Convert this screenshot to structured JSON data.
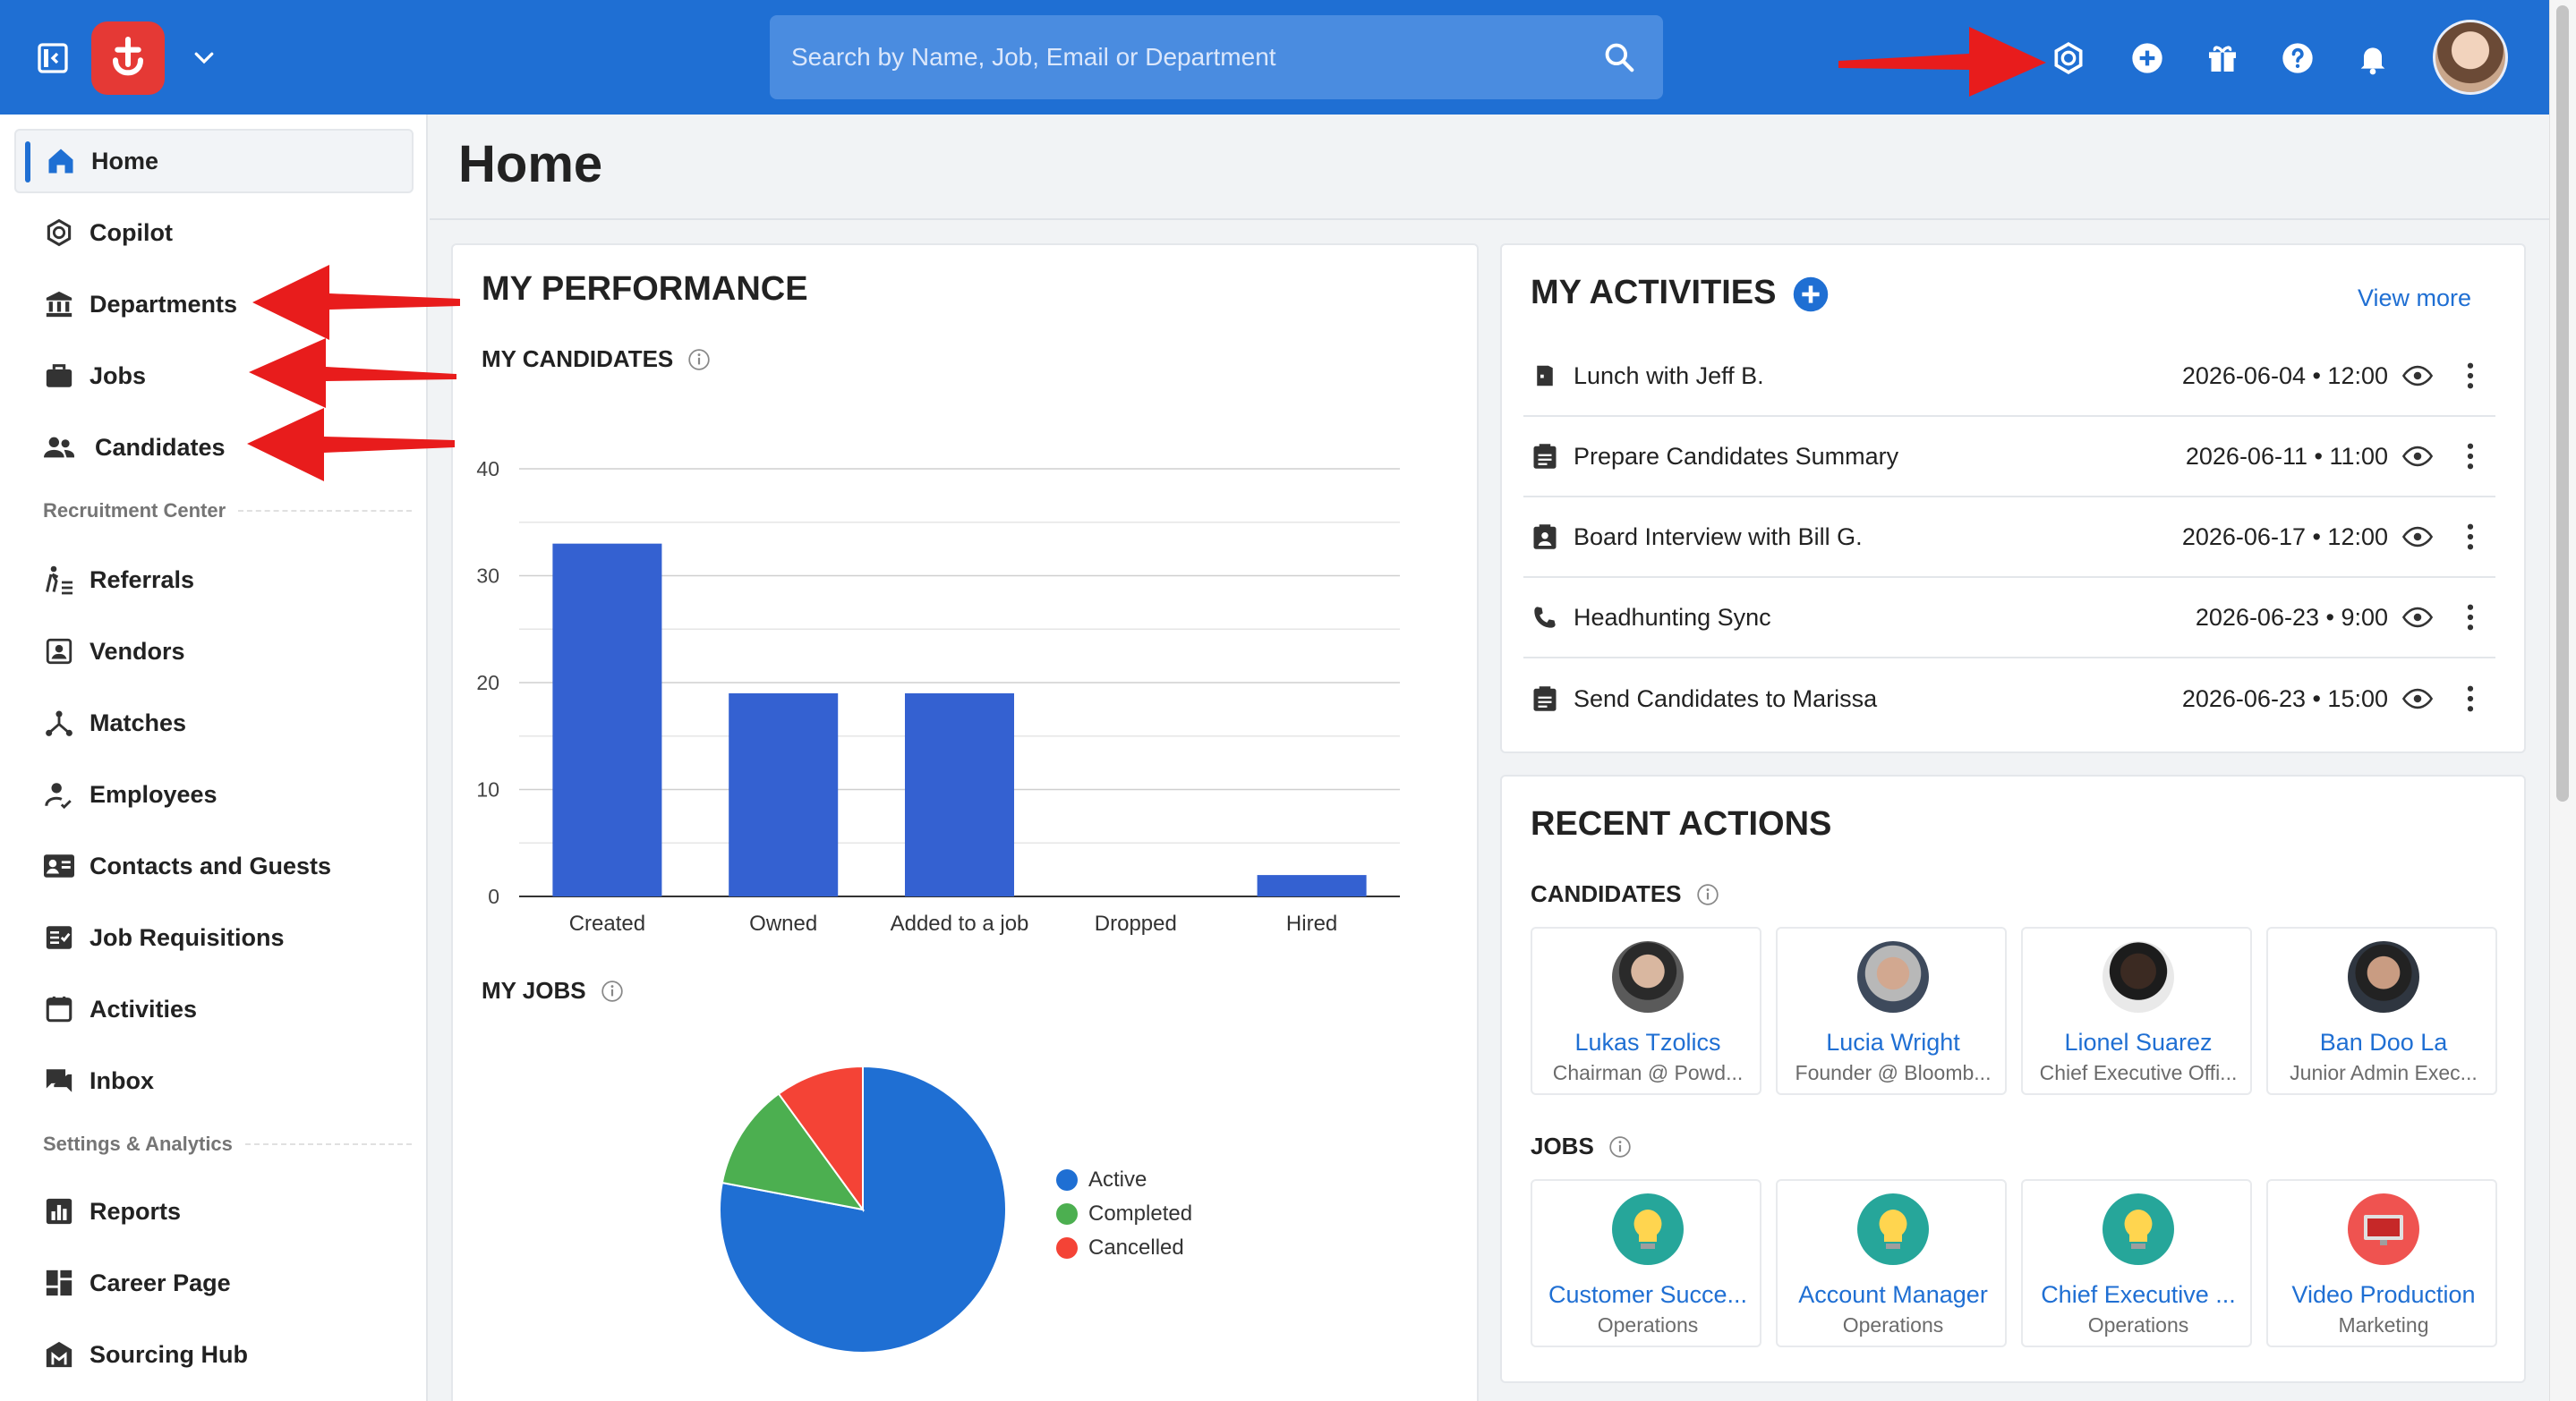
{
  "header": {
    "search_placeholder": "Search by Name, Job, Email or Department",
    "icons": [
      "sidebar-toggle-icon",
      "app-logo",
      "chevron-down-icon",
      "search-icon",
      "copilot-icon",
      "add-icon",
      "gift-icon",
      "help-icon",
      "bell-icon",
      "user-avatar"
    ]
  },
  "sidebar": {
    "items": [
      {
        "label": "Home",
        "icon": "home-icon",
        "active": true
      },
      {
        "label": "Copilot",
        "icon": "copilot-icon"
      },
      {
        "label": "Departments",
        "icon": "bank-icon"
      },
      {
        "label": "Jobs",
        "icon": "briefcase-icon"
      },
      {
        "label": "Candidates",
        "icon": "people-icon"
      }
    ],
    "section_recruitment": "Recruitment Center",
    "recruitment_items": [
      {
        "label": "Referrals",
        "icon": "referral-icon"
      },
      {
        "label": "Vendors",
        "icon": "vendor-icon"
      },
      {
        "label": "Matches",
        "icon": "matches-icon"
      },
      {
        "label": "Employees",
        "icon": "employee-icon"
      },
      {
        "label": "Contacts and Guests",
        "icon": "contact-card-icon"
      },
      {
        "label": "Job Requisitions",
        "icon": "requisition-icon"
      },
      {
        "label": "Activities",
        "icon": "calendar-icon"
      },
      {
        "label": "Inbox",
        "icon": "inbox-icon"
      }
    ],
    "section_settings": "Settings & Analytics",
    "settings_items": [
      {
        "label": "Reports",
        "icon": "reports-icon"
      },
      {
        "label": "Career Page",
        "icon": "career-page-icon"
      },
      {
        "label": "Sourcing Hub",
        "icon": "sourcing-hub-icon"
      }
    ]
  },
  "page": {
    "title": "Home"
  },
  "performance": {
    "title": "MY PERFORMANCE",
    "candidates_title": "MY CANDIDATES",
    "jobs_title": "MY JOBS"
  },
  "chart_data": [
    {
      "type": "bar",
      "title": "MY CANDIDATES",
      "categories": [
        "Created",
        "Owned",
        "Added to a job",
        "Dropped",
        "Hired"
      ],
      "values": [
        33,
        19,
        19,
        0,
        2
      ],
      "ylim": [
        0,
        40
      ],
      "yticks": [
        0,
        10,
        20,
        30,
        40
      ],
      "grid": true,
      "color": "#3461d1"
    },
    {
      "type": "pie",
      "title": "MY JOBS",
      "labels": [
        "Active",
        "Completed",
        "Cancelled"
      ],
      "values": [
        78,
        12,
        10
      ],
      "colors": [
        "#1f6fd3",
        "#4caf50",
        "#f44336"
      ],
      "legend": "right"
    }
  ],
  "activities": {
    "title": "MY ACTIVITIES",
    "view_more": "View more",
    "items": [
      {
        "title": "Lunch with Jeff B.",
        "date": "2026-06-04 • 12:00",
        "icon": "meeting-icon"
      },
      {
        "title": "Prepare Candidates Summary",
        "date": "2026-06-11 • 11:00",
        "icon": "task-icon"
      },
      {
        "title": "Board Interview with Bill G.",
        "date": "2026-06-17 • 12:00",
        "icon": "interview-icon"
      },
      {
        "title": "Headhunting Sync",
        "date": "2026-06-23 • 9:00",
        "icon": "phone-icon"
      },
      {
        "title": "Send Candidates to Marissa",
        "date": "2026-06-23 • 15:00",
        "icon": "task-icon"
      }
    ]
  },
  "recent": {
    "title": "RECENT ACTIONS",
    "candidates_title": "CANDIDATES",
    "jobs_title": "JOBS",
    "candidates": [
      {
        "name": "Lukas Tzolics",
        "sub": "Chairman @ Powd..."
      },
      {
        "name": "Lucia Wright",
        "sub": "Founder @ Bloomb..."
      },
      {
        "name": "Lionel Suarez",
        "sub": "Chief Executive Offi..."
      },
      {
        "name": "Ban Doo La",
        "sub": "Junior Admin Exec..."
      }
    ],
    "jobs": [
      {
        "name": "Customer Succe...",
        "sub": "Operations",
        "icon": "lightbulb-icon"
      },
      {
        "name": "Account Manager",
        "sub": "Operations",
        "icon": "lightbulb-icon"
      },
      {
        "name": "Chief Executive ...",
        "sub": "Operations",
        "icon": "lightbulb-icon"
      },
      {
        "name": "Video Production",
        "sub": "Marketing",
        "icon": "marketing-screen-icon"
      }
    ]
  }
}
